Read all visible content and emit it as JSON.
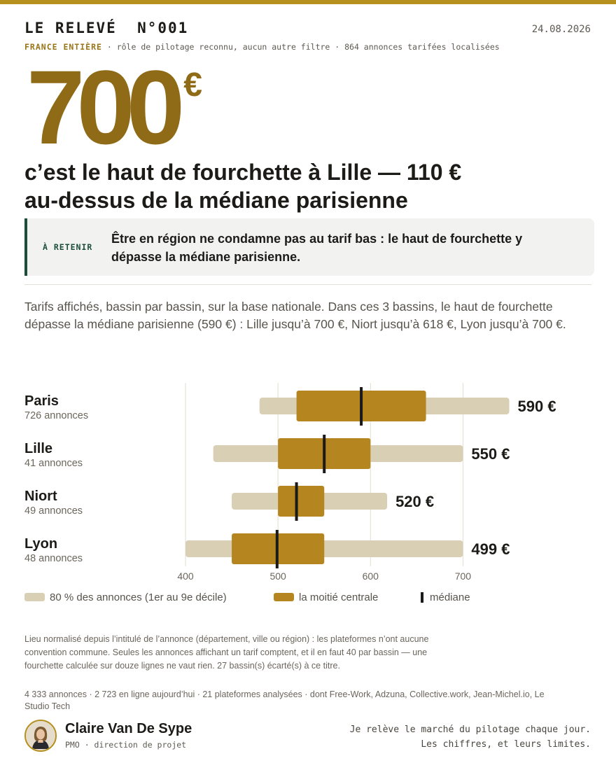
{
  "header": {
    "title": "LE RELEVÉ  N°001",
    "date": "24.08.2026",
    "scope": "FRANCE ENTIÈRE",
    "filters": " · rôle de pilotage reconnu, aucun autre filtre · 864 annonces tarifées localisées"
  },
  "hero": {
    "number": "700",
    "currency": "€",
    "headline_line1": "c’est le haut de fourchette à Lille — 110 €",
    "headline_line2": "au-dessus de la médiane parisienne"
  },
  "callout": {
    "tag": "À RETENIR",
    "text": "Être en région ne condamne pas au tarif bas : le haut de fourchette y dépasse la médiane parisienne."
  },
  "intro": "Tarifs affichés, bassin par bassin, sur la base nationale. Dans ces 3 bassins, le haut de fourchette dépasse la médiane parisienne (590 €) : Lille jusqu’à 700 €, Niort jusqu’à 618 €, Lyon jusqu’à 700 €.",
  "colors": {
    "accent": "#8f6a17",
    "range80": "#d9cfb4",
    "iqr": "#b5861f",
    "median": "#1a1a1a",
    "callout_border": "#1b4d38"
  },
  "chart_data": {
    "type": "range-bar",
    "xlim": [
      400,
      750
    ],
    "ticks": [
      400,
      500,
      600,
      700
    ],
    "categories": [
      {
        "name": "Paris",
        "count_label": "726 annonces",
        "p10": 480,
        "q1": 520,
        "median": 590,
        "q3": 660,
        "p90": 750,
        "label": "590 €"
      },
      {
        "name": "Lille",
        "count_label": "41 annonces",
        "p10": 430,
        "q1": 500,
        "median": 550,
        "q3": 600,
        "p90": 700,
        "label": "550 €"
      },
      {
        "name": "Niort",
        "count_label": "49 annonces",
        "p10": 450,
        "q1": 500,
        "median": 520,
        "q3": 550,
        "p90": 618,
        "label": "520 €"
      },
      {
        "name": "Lyon",
        "count_label": "48 annonces",
        "p10": 400,
        "q1": 450,
        "median": 499,
        "q3": 550,
        "p90": 700,
        "label": "499 €"
      }
    ],
    "legend": {
      "range80": "80 % des annonces (1er au 9e décile)",
      "iqr": "la moitié centrale",
      "median": "médiane"
    }
  },
  "footnote": "Lieu normalisé depuis l’intitulé de l’annonce (département, ville ou région) : les plateformes n’ont aucune convention commune. Seules les annonces affichant un tarif comptent, et il en faut 40 par bassin — une fourchette calculée sur douze lignes ne vaut rien. 27 bassin(s) écarté(s) à ce titre.",
  "stats": "4 333 annonces · 2 723 en ligne aujourd’hui · 21 plateformes analysées · dont Free-Work, Adzuna, Collective.work, Jean-Michel.io, Le Studio Tech",
  "author": {
    "name": "Claire Van De Sype",
    "role": "PMO · direction de projet"
  },
  "tagline": {
    "line1": "Je relève le marché du pilotage chaque jour.",
    "line2": "Les chiffres, et leurs limites."
  }
}
